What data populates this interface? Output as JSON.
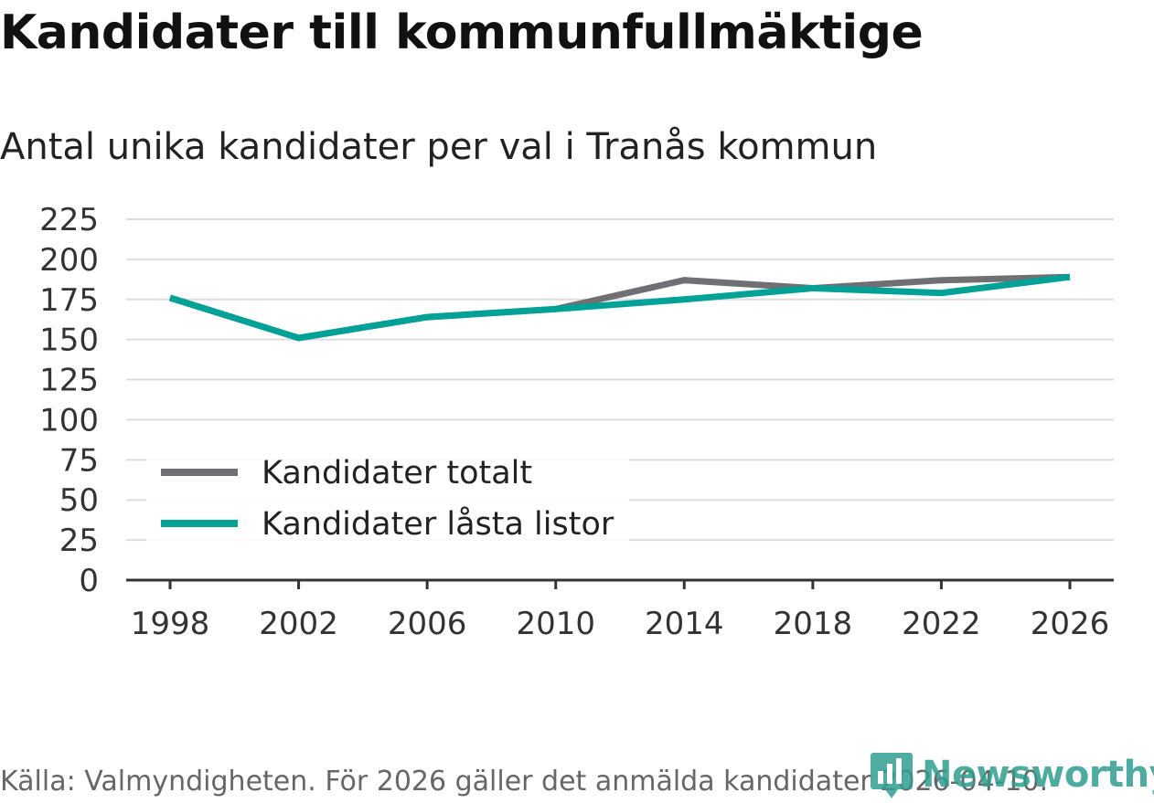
{
  "title": "Kandidater till kommunfullmäktige",
  "subtitle": "Antal unika kandidater per val i Tranås kommun",
  "footer": "Källa: Valmyndigheten. För 2026 gäller det anmälda kandidater 2026-04-10.",
  "brand": "Newsworthy",
  "colors": {
    "series_total": "#707074",
    "series_locked": "#00a197",
    "grid": "#dddddd",
    "axis": "#333333",
    "brand": "#2f9e8f"
  },
  "chart_data": {
    "type": "line",
    "title": "Kandidater till kommunfullmäktige",
    "subtitle": "Antal unika kandidater per val i Tranås kommun",
    "xlabel": "",
    "ylabel": "",
    "x": [
      "1998",
      "2002",
      "2006",
      "2010",
      "2014",
      "2018",
      "2022",
      "2026"
    ],
    "ylim": [
      0,
      225
    ],
    "yticks": [
      "0",
      "25",
      "50",
      "75",
      "100",
      "125",
      "150",
      "175",
      "200",
      "225"
    ],
    "legend_position": "bottom-left",
    "grid": true,
    "series": [
      {
        "name": "Kandidater totalt",
        "color": "#707074",
        "values": [
          176,
          151,
          164,
          169,
          187,
          182,
          187,
          189
        ]
      },
      {
        "name": "Kandidater låsta listor",
        "color": "#00a197",
        "values": [
          176,
          151,
          164,
          169,
          175,
          182,
          179,
          189
        ]
      }
    ]
  }
}
